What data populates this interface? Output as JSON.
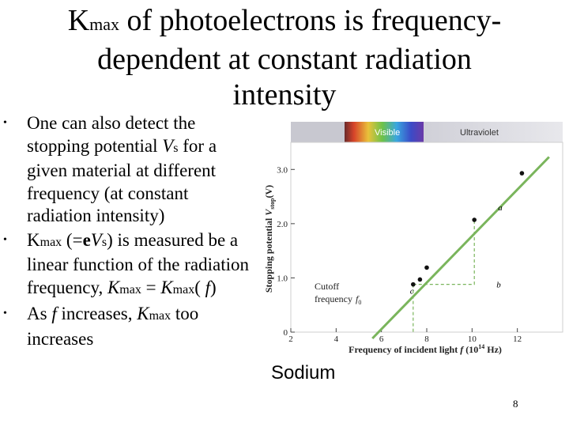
{
  "slide": {
    "title": {
      "k": "K",
      "k_sub": "max",
      "rest_line1": " of photoelectrons is frequency-",
      "line2": "dependent at constant radiation",
      "line3": "intensity"
    },
    "bullets": [
      {
        "a": "One can also detect the stopping potential ",
        "v": "V",
        "v_sub": "s",
        "b": " for a given material at different frequency (at constant radiation intensity)"
      },
      {
        "k": "K",
        "k_sub": "max",
        "mid1": " (=",
        "e": "e",
        "v": "V",
        "v_sub": "s",
        "mid2": ") is measured be a linear function of the radiation frequency, ",
        "k2": "K",
        "k2_sub": "max",
        "eq": " = ",
        "k3": "K",
        "k3_sub": "max",
        "paren_open": "( ",
        "f": "f",
        "paren_close": ")"
      },
      {
        "a": "As ",
        "f": "f",
        "b": " increases, ",
        "k": "K",
        "k_sub": "max",
        "c": " too increases"
      }
    ],
    "caption": "Sodium",
    "page_number": "8"
  },
  "chart_data": {
    "type": "scatter",
    "xlabel": "Frequency of incident light f (10^14 Hz)",
    "ylabel": "Stopping potential Vstop (V)",
    "x_ticks": [
      "2",
      "4",
      "6",
      "8",
      "10",
      "12"
    ],
    "y_ticks": [
      "0",
      "1.0",
      "2.0",
      "3.0"
    ],
    "xlim": [
      2,
      14
    ],
    "ylim": [
      0,
      3.5
    ],
    "points": [
      {
        "x": 7.4,
        "y": 0.88
      },
      {
        "x": 7.7,
        "y": 0.97
      },
      {
        "x": 8.0,
        "y": 1.19
      },
      {
        "x": 10.1,
        "y": 2.07
      },
      {
        "x": 12.2,
        "y": 2.93
      }
    ],
    "fit_line": {
      "x1": 5.6,
      "y1": 0,
      "x2": 13.4,
      "y2": 3.23
    },
    "annotations": {
      "visible_label": "Visible",
      "uv_label": "Ultraviolet",
      "cutoff_line1": "Cutoff",
      "cutoff_line2": "frequency",
      "cutoff_symbol": "f",
      "cutoff_sub": "0",
      "label_a": "a",
      "label_b": "b",
      "label_c": "c",
      "axis_y_letter": "V",
      "axis_y_sub": "stop",
      "axis_y_unit": "(V)",
      "axis_y_prefix": "Stopping potential ",
      "axis_x_prefix": "Frequency of incident light ",
      "axis_x_f": "f",
      "axis_x_unit_open": " (10",
      "axis_x_exp": "14",
      "axis_x_unit_close": " Hz)"
    },
    "colors": {
      "line": "#7ab55c",
      "point": "#111111",
      "guide": "#7ab55c",
      "axis": "#444444"
    }
  }
}
